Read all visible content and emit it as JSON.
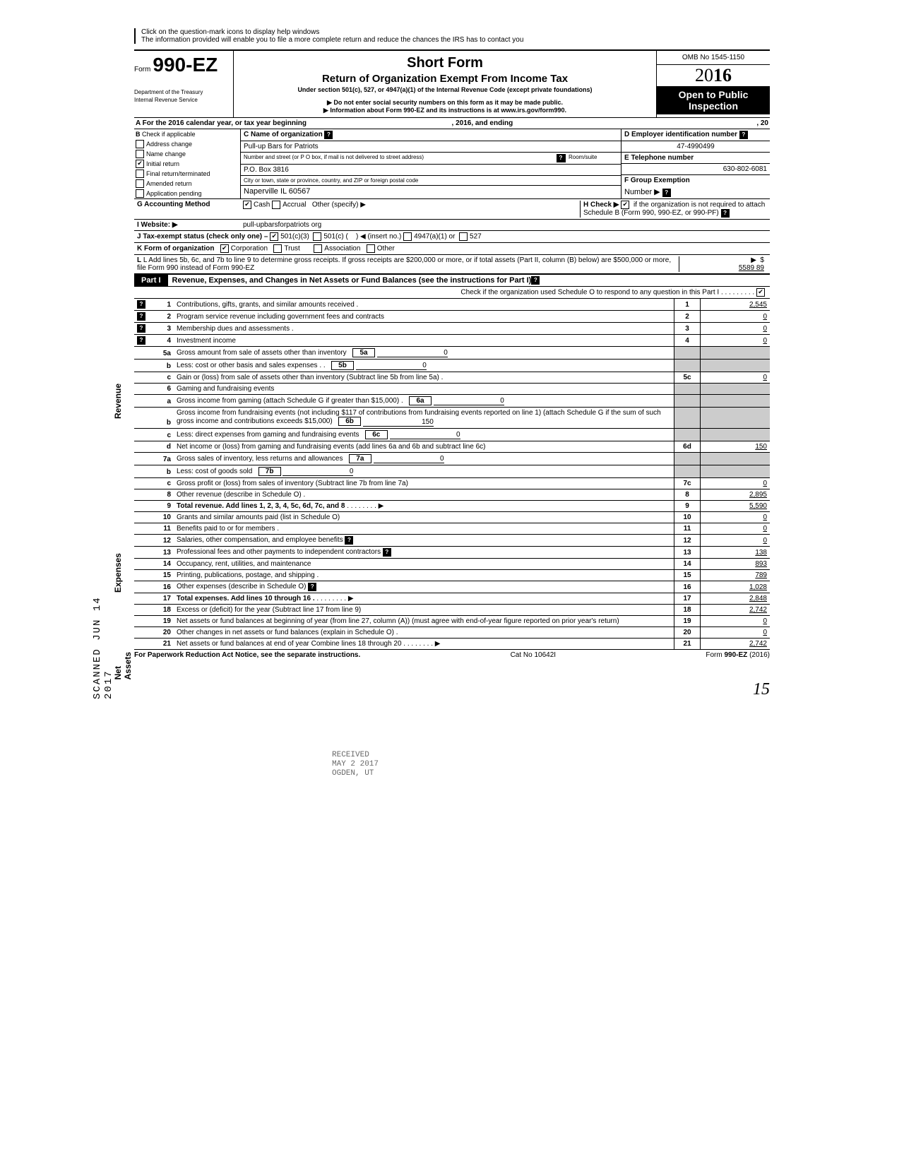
{
  "hint1": "Click on the question-mark icons to display help windows",
  "hint2": "The information provided will enable you to file a more complete return and reduce the chances the IRS has to contact you",
  "form_prefix": "Form",
  "form_number": "990-EZ",
  "dept1": "Department of the Treasury",
  "dept2": "Internal Revenue Service",
  "title1": "Short Form",
  "title2": "Return of Organization Exempt From Income Tax",
  "subtitle": "Under section 501(c), 527, or 4947(a)(1) of the Internal Revenue Code (except private foundations)",
  "warn1": "▶ Do not enter social security numbers on this form as it may be made public.",
  "warn2": "▶ Information about Form 990-EZ and its instructions is at www.irs.gov/form990.",
  "omb": "OMB No 1545-1150",
  "year_prefix": "20",
  "year_bold": "16",
  "open1": "Open to Public",
  "open2": "Inspection",
  "lineA": "A For the 2016 calendar year, or tax year beginning",
  "lineA_mid": ", 2016, and ending",
  "lineA_end": ", 20",
  "B": "B",
  "B_label": "Check if applicable",
  "B_items": [
    "Address change",
    "Name change",
    "Initial return",
    "Final return/terminated",
    "Amended return",
    "Application pending"
  ],
  "B_checked": 2,
  "C_label": "C Name of organization",
  "org_name": "Pull-up Bars for Patriots",
  "addr_label": "Number and street (or P O box, if mail is not delivered to street address)",
  "room": "Room/suite",
  "addr": "P.O. Box 3816",
  "city_label": "City or town, state or province, country, and ZIP or foreign postal code",
  "city": "Naperville IL 60567",
  "D_label": "D Employer identification number",
  "ein": "47-4990499",
  "E_label": "E Telephone number",
  "phone": "630-802-6081",
  "F_label": "F Group Exemption",
  "F_label2": "Number ▶",
  "G": "G Accounting Method",
  "G_cash": "Cash",
  "G_accrual": "Accrual",
  "G_other": "Other (specify) ▶",
  "H_label": "H Check ▶",
  "H_text": "if the organization is not required to attach Schedule B (Form 990, 990-EZ, or 990-PF)",
  "I": "I Website: ▶",
  "website": "pull-upbarsforpatriots org",
  "J": "J Tax-exempt status (check only one) –",
  "J_501c3": "501(c)(3)",
  "J_501c": "501(c) (",
  "J_insert": ") ◀ (insert no.)",
  "J_4947": "4947(a)(1) or",
  "J_527": "527",
  "K": "K Form of organization",
  "K_corp": "Corporation",
  "K_trust": "Trust",
  "K_assoc": "Association",
  "K_other": "Other",
  "L": "L Add lines 5b, 6c, and 7b to line 9 to determine gross receipts. If gross receipts are $200,000 or more, or if total assets (Part II, column (B) below) are $500,000 or more, file Form 990 instead of Form 990-EZ",
  "L_amt": "5589 89",
  "part1": "Part I",
  "part1_title": "Revenue, Expenses, and Changes in Net Assets or Fund Balances (see the instructions for Part I)",
  "check_o": "Check if the organization used Schedule O to respond to any question in this Part I",
  "rows": {
    "1": {
      "n": "1",
      "d": "Contributions, gifts, grants, and similar amounts received .",
      "a": "2,545"
    },
    "2": {
      "n": "2",
      "d": "Program service revenue including government fees and contracts",
      "a": "0"
    },
    "3": {
      "n": "3",
      "d": "Membership dues and assessments .",
      "a": "0"
    },
    "4": {
      "n": "4",
      "d": "Investment income",
      "a": "0"
    },
    "5a": {
      "n": "5a",
      "d": "Gross amount from sale of assets other than inventory",
      "box": "5a",
      "ia": "0"
    },
    "5b": {
      "n": "b",
      "d": "Less: cost or other basis and sales expenses . .",
      "box": "5b",
      "ia": "0"
    },
    "5c": {
      "n": "c",
      "d": "Gain or (loss) from sale of assets other than inventory (Subtract line 5b from line 5a) .",
      "bn": "5c",
      "a": "0"
    },
    "6": {
      "n": "6",
      "d": "Gaming and fundraising events"
    },
    "6a": {
      "n": "a",
      "d": "Gross income from gaming (attach Schedule G if greater than $15,000) .",
      "box": "6a",
      "ia": "0"
    },
    "6b": {
      "n": "b",
      "d": "Gross income from fundraising events (not including $117                of contributions from fundraising events reported on line 1) (attach Schedule G if the sum of such gross income and contributions exceeds $15,000)",
      "box": "6b",
      "ia": "150"
    },
    "6c": {
      "n": "c",
      "d": "Less: direct expenses from gaming and fundraising events",
      "box": "6c",
      "ia": "0"
    },
    "6d": {
      "n": "d",
      "d": "Net income or (loss) from gaming and fundraising events (add lines 6a and 6b and subtract line 6c)",
      "bn": "6d",
      "a": "150"
    },
    "7a": {
      "n": "7a",
      "d": "Gross sales of inventory, less returns and allowances",
      "box": "7a",
      "ia": "0"
    },
    "7b": {
      "n": "b",
      "d": "Less: cost of goods sold",
      "box": "7b",
      "ia": "0"
    },
    "7c": {
      "n": "c",
      "d": "Gross profit or (loss) from sales of inventory (Subtract line 7b from line 7a)",
      "bn": "7c",
      "a": "0"
    },
    "8": {
      "n": "8",
      "d": "Other revenue (describe in Schedule O) .",
      "bn": "8",
      "a": "2,895"
    },
    "9": {
      "n": "9",
      "d": "Total revenue. Add lines 1, 2, 3, 4, 5c, 6d, 7c, and 8",
      "bn": "9",
      "a": "5,590",
      "bold": true
    },
    "10": {
      "n": "10",
      "d": "Grants and similar amounts paid (list in Schedule O)",
      "bn": "10",
      "a": "0"
    },
    "11": {
      "n": "11",
      "d": "Benefits paid to or for members .",
      "bn": "11",
      "a": "0"
    },
    "12": {
      "n": "12",
      "d": "Salaries, other compensation, and employee benefits",
      "bn": "12",
      "a": "0",
      "help": true
    },
    "13": {
      "n": "13",
      "d": "Professional fees and other payments to independent contractors",
      "bn": "13",
      "a": "138",
      "help": true
    },
    "14": {
      "n": "14",
      "d": "Occupancy, rent, utilities, and maintenance",
      "bn": "14",
      "a": "893"
    },
    "15": {
      "n": "15",
      "d": "Printing, publications, postage, and shipping .",
      "bn": "15",
      "a": "789"
    },
    "16": {
      "n": "16",
      "d": "Other expenses (describe in Schedule O)",
      "bn": "16",
      "a": "1,028",
      "help": true
    },
    "17": {
      "n": "17",
      "d": "Total expenses. Add lines 10 through 16 .",
      "bn": "17",
      "a": "2,848",
      "bold": true
    },
    "18": {
      "n": "18",
      "d": "Excess or (deficit) for the year (Subtract line 17 from line 9)",
      "bn": "18",
      "a": "2,742"
    },
    "19": {
      "n": "19",
      "d": "Net assets or fund balances at beginning of year (from line 27, column (A)) (must agree with end-of-year figure reported on prior year's return)",
      "bn": "19",
      "a": "0"
    },
    "20": {
      "n": "20",
      "d": "Other changes in net assets or fund balances (explain in Schedule O) .",
      "bn": "20",
      "a": "0"
    },
    "21": {
      "n": "21",
      "d": "Net assets or fund balances at end of year Combine lines 18 through 20",
      "bn": "21",
      "a": "2,742"
    }
  },
  "side_rev": "Revenue",
  "side_exp": "Expenses",
  "side_net": "Net Assets",
  "side_scan": "SCANNED JUN 14 2017",
  "footer_left": "For Paperwork Reduction Act Notice, see the separate instructions.",
  "footer_mid": "Cat No 10642I",
  "footer_right": "Form 990-EZ (2016)",
  "pgnum": "15",
  "stamp1": "RECEIVED",
  "stamp2": "MAY 2 2017",
  "stamp3": "OGDEN, UT"
}
